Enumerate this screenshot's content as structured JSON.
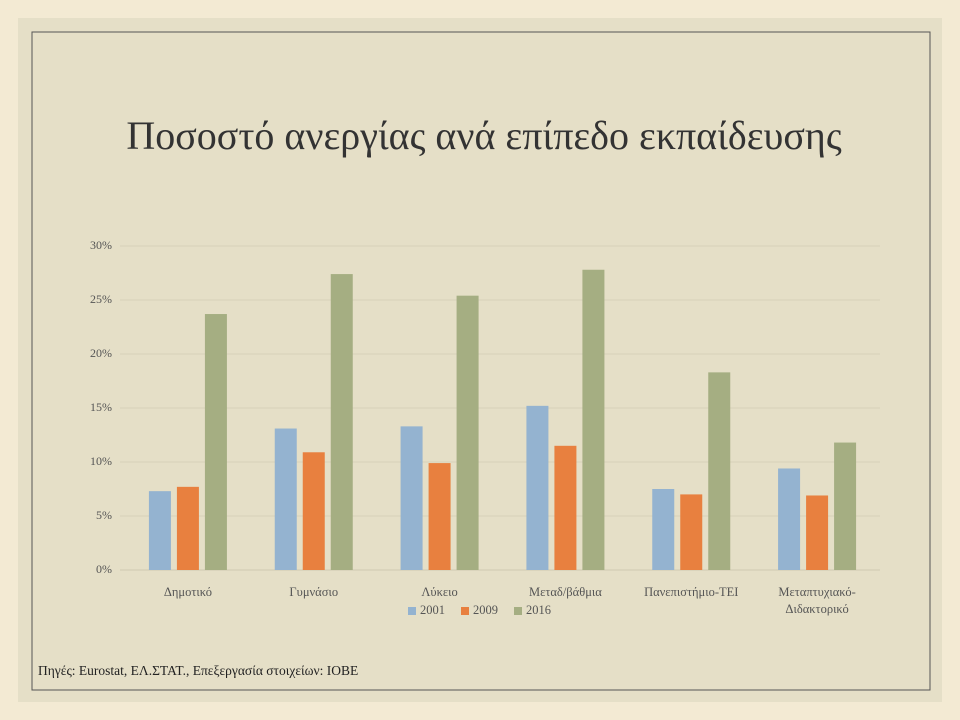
{
  "chart_data": {
    "type": "bar",
    "title": "Ποσοστό ανεργίας ανά επίπεδο εκπαίδευσης",
    "categories": [
      "Δημοτικό",
      "Γυμνάσιο",
      "Λύκειο",
      "Μεταδ/βάθμια",
      "Πανεπιστήμιο-ΤΕΙ",
      "Μεταπτυχιακό-Διδακτορικό"
    ],
    "series": [
      {
        "name": "2001",
        "color": "#94b3d0",
        "values": [
          7.3,
          13.1,
          13.3,
          15.2,
          7.5,
          9.4
        ]
      },
      {
        "name": "2009",
        "color": "#e8803f",
        "values": [
          7.7,
          10.9,
          9.9,
          11.5,
          7.0,
          6.9
        ]
      },
      {
        "name": "2016",
        "color": "#a5ae82",
        "values": [
          23.7,
          27.4,
          25.4,
          27.8,
          18.3,
          11.8
        ]
      }
    ],
    "ylim": [
      0,
      30
    ],
    "yticks": [
      {
        "value": 0,
        "label": "0%"
      },
      {
        "value": 5,
        "label": "5%"
      },
      {
        "value": 10,
        "label": "10%"
      },
      {
        "value": 15,
        "label": "15%"
      },
      {
        "value": 20,
        "label": "20%"
      },
      {
        "value": 25,
        "label": "25%"
      },
      {
        "value": 30,
        "label": "30%"
      }
    ],
    "grid": true,
    "legend": "bottom",
    "source": "Πηγές: Eurostat, ΕΛ.ΣΤΑΤ., Επεξεργασία στοιχείων: ΙΟΒΕ"
  }
}
